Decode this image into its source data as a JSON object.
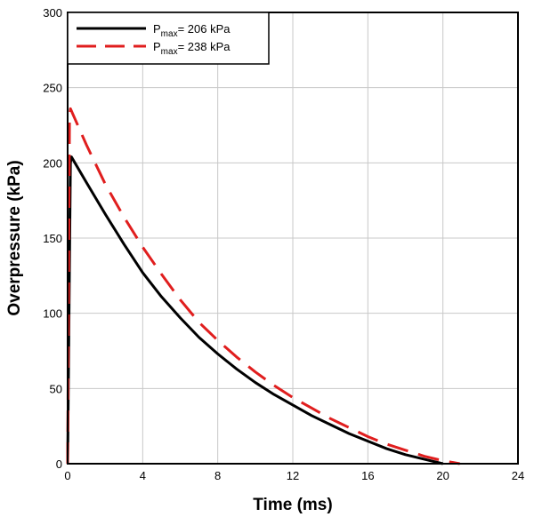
{
  "chart_data": {
    "type": "line",
    "title": "",
    "xlabel": "Time (ms)",
    "ylabel": "Overpressure (kPa)",
    "xlim": [
      0,
      24
    ],
    "ylim": [
      0,
      300
    ],
    "xticks": [
      0,
      4,
      8,
      12,
      16,
      20,
      24
    ],
    "yticks": [
      0,
      50,
      100,
      150,
      200,
      250,
      300
    ],
    "grid": true,
    "legend_position": "top-left",
    "series": [
      {
        "name_prefix": "P",
        "name_subscript": "max",
        "name_suffix": "= 206 kPa",
        "color": "#000000",
        "dash": "solid",
        "x": [
          0,
          0.15,
          0.2,
          1,
          2,
          3,
          4,
          5,
          6,
          7,
          8,
          9,
          10,
          11,
          12,
          13,
          14,
          15,
          16,
          17,
          18,
          19,
          20
        ],
        "y": [
          0,
          200,
          204,
          187,
          166,
          146,
          127,
          111,
          97,
          84,
          73,
          63,
          54,
          46,
          39,
          32,
          26,
          20,
          15,
          10,
          6,
          3,
          0
        ]
      },
      {
        "name_prefix": "P",
        "name_subscript": "max",
        "name_suffix": "= 238 kPa",
        "color": "#e01e1e",
        "dash": "dashed",
        "x": [
          0,
          0.1,
          0.15,
          1,
          2,
          3,
          4,
          5,
          6,
          7,
          8,
          9,
          10,
          11,
          12,
          13,
          14,
          15,
          16,
          17,
          18,
          19,
          20,
          20.9
        ],
        "y": [
          0,
          230,
          236,
          212,
          186,
          164,
          144,
          126,
          109,
          94,
          82,
          71,
          61,
          52,
          44,
          37,
          30,
          24,
          18,
          13,
          9,
          5,
          2,
          0
        ]
      }
    ]
  }
}
